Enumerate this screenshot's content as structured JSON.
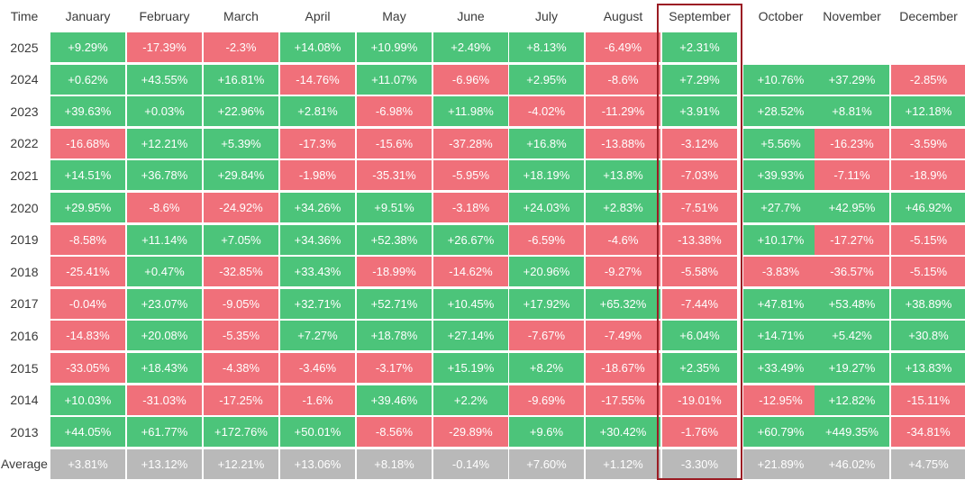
{
  "chart_data": {
    "type": "table",
    "corner_label": "Time",
    "columns": [
      "January",
      "February",
      "March",
      "April",
      "May",
      "June",
      "July",
      "August",
      "September",
      "October",
      "November",
      "December"
    ],
    "rows": [
      {
        "label": "2025",
        "values": [
          "+9.29%",
          "-17.39%",
          "-2.3%",
          "+14.08%",
          "+10.99%",
          "+2.49%",
          "+8.13%",
          "-6.49%",
          "+2.31%",
          "",
          "",
          ""
        ]
      },
      {
        "label": "2024",
        "values": [
          "+0.62%",
          "+43.55%",
          "+16.81%",
          "-14.76%",
          "+11.07%",
          "-6.96%",
          "+2.95%",
          "-8.6%",
          "+7.29%",
          "+10.76%",
          "+37.29%",
          "-2.85%"
        ]
      },
      {
        "label": "2023",
        "values": [
          "+39.63%",
          "+0.03%",
          "+22.96%",
          "+2.81%",
          "-6.98%",
          "+11.98%",
          "-4.02%",
          "-11.29%",
          "+3.91%",
          "+28.52%",
          "+8.81%",
          "+12.18%"
        ]
      },
      {
        "label": "2022",
        "values": [
          "-16.68%",
          "+12.21%",
          "+5.39%",
          "-17.3%",
          "-15.6%",
          "-37.28%",
          "+16.8%",
          "-13.88%",
          "-3.12%",
          "+5.56%",
          "-16.23%",
          "-3.59%"
        ]
      },
      {
        "label": "2021",
        "values": [
          "+14.51%",
          "+36.78%",
          "+29.84%",
          "-1.98%",
          "-35.31%",
          "-5.95%",
          "+18.19%",
          "+13.8%",
          "-7.03%",
          "+39.93%",
          "-7.11%",
          "-18.9%"
        ]
      },
      {
        "label": "2020",
        "values": [
          "+29.95%",
          "-8.6%",
          "-24.92%",
          "+34.26%",
          "+9.51%",
          "-3.18%",
          "+24.03%",
          "+2.83%",
          "-7.51%",
          "+27.7%",
          "+42.95%",
          "+46.92%"
        ]
      },
      {
        "label": "2019",
        "values": [
          "-8.58%",
          "+11.14%",
          "+7.05%",
          "+34.36%",
          "+52.38%",
          "+26.67%",
          "-6.59%",
          "-4.6%",
          "-13.38%",
          "+10.17%",
          "-17.27%",
          "-5.15%"
        ]
      },
      {
        "label": "2018",
        "values": [
          "-25.41%",
          "+0.47%",
          "-32.85%",
          "+33.43%",
          "-18.99%",
          "-14.62%",
          "+20.96%",
          "-9.27%",
          "-5.58%",
          "-3.83%",
          "-36.57%",
          "-5.15%"
        ]
      },
      {
        "label": "2017",
        "values": [
          "-0.04%",
          "+23.07%",
          "-9.05%",
          "+32.71%",
          "+52.71%",
          "+10.45%",
          "+17.92%",
          "+65.32%",
          "-7.44%",
          "+47.81%",
          "+53.48%",
          "+38.89%"
        ]
      },
      {
        "label": "2016",
        "values": [
          "-14.83%",
          "+20.08%",
          "-5.35%",
          "+7.27%",
          "+18.78%",
          "+27.14%",
          "-7.67%",
          "-7.49%",
          "+6.04%",
          "+14.71%",
          "+5.42%",
          "+30.8%"
        ]
      },
      {
        "label": "2015",
        "values": [
          "-33.05%",
          "+18.43%",
          "-4.38%",
          "-3.46%",
          "-3.17%",
          "+15.19%",
          "+8.2%",
          "-18.67%",
          "+2.35%",
          "+33.49%",
          "+19.27%",
          "+13.83%"
        ]
      },
      {
        "label": "2014",
        "values": [
          "+10.03%",
          "-31.03%",
          "-17.25%",
          "-1.6%",
          "+39.46%",
          "+2.2%",
          "-9.69%",
          "-17.55%",
          "-19.01%",
          "-12.95%",
          "+12.82%",
          "-15.11%"
        ]
      },
      {
        "label": "2013",
        "values": [
          "+44.05%",
          "+61.77%",
          "+172.76%",
          "+50.01%",
          "-8.56%",
          "-29.89%",
          "+9.6%",
          "+30.42%",
          "-1.76%",
          "+60.79%",
          "+449.35%",
          "-34.81%"
        ]
      }
    ],
    "average": {
      "label": "Average",
      "values": [
        "+3.81%",
        "+13.12%",
        "+12.21%",
        "+13.06%",
        "+8.18%",
        "-0.14%",
        "+7.60%",
        "+1.12%",
        "-3.30%",
        "+21.89%",
        "+46.02%",
        "+4.75%"
      ]
    },
    "highlighted_column": "September",
    "colors": {
      "positive": "#4cc47a",
      "negative": "#f0707a",
      "average": "#b9b9b9",
      "highlight_border": "#9b1c24",
      "header_text": "#3a3a3a"
    }
  }
}
